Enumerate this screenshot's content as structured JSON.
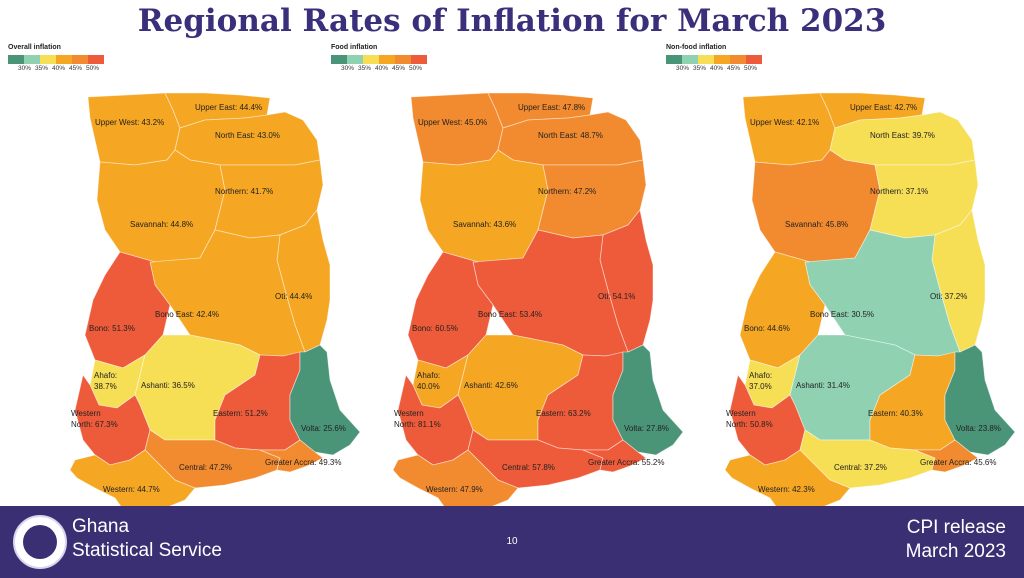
{
  "title": "Regional Rates of Inflation for March 2023",
  "colors": {
    "c30": "#4a9478",
    "c35": "#8fd1b0",
    "c40": "#f6de55",
    "c45": "#f5a623",
    "c50": "#f28b30",
    "c55": "#ee5b3a"
  },
  "legend_ticks": [
    "30%",
    "35%",
    "40%",
    "45%",
    "50%"
  ],
  "maps": [
    {
      "legend_title": "Overall inflation",
      "labels": {
        "upper_west": "Upper West: 43.2%",
        "upper_east": "Upper East: 44.4%",
        "north_east": "North East: 43.0%",
        "northern": "Northern: 41.7%",
        "savannah": "Savannah: 44.8%",
        "bono": "Bono: 51.3%",
        "bono_east": "Bono East: 42.4%",
        "oti": "Oti: 44.4%",
        "ahafo_1": "Ahafo:",
        "ahafo_2": "38.7%",
        "ashanti": "Ashanti: 36.5%",
        "western_north_1": "Western",
        "western_north_2": "North: 67.3%",
        "eastern": "Eastern: 51.2%",
        "volta": "Volta: 25.6%",
        "central": "Central: 47.2%",
        "greater_accra": "Greater Accra: 49.3%",
        "western": "Western: 44.7%"
      },
      "values": {
        "upper_west": 43.2,
        "upper_east": 44.4,
        "north_east": 43.0,
        "northern": 41.7,
        "savannah": 44.8,
        "bono": 51.3,
        "bono_east": 42.4,
        "oti": 44.4,
        "ahafo": 38.7,
        "ashanti": 36.5,
        "western_north": 67.3,
        "eastern": 51.2,
        "volta": 25.6,
        "central": 47.2,
        "greater_accra": 49.3,
        "western": 44.7
      }
    },
    {
      "legend_title": "Food inflation",
      "labels": {
        "upper_west": "Upper West: 45.0%",
        "upper_east": "Upper East: 47.8%",
        "north_east": "North East: 48.7%",
        "northern": "Northern: 47.2%",
        "savannah": "Savannah: 43.6%",
        "bono": "Bono: 60.5%",
        "bono_east": "Bono East: 53.4%",
        "oti": "Oti: 54.1%",
        "ahafo_1": "Ahafo:",
        "ahafo_2": "40.0%",
        "ashanti": "Ashanti: 42.6%",
        "western_north_1": "Western",
        "western_north_2": "North: 81.1%",
        "eastern": "Eastern: 63.2%",
        "volta": "Volta: 27.8%",
        "central": "Central: 57.8%",
        "greater_accra": "Greater Accra: 55.2%",
        "western": "Western: 47.9%"
      },
      "values": {
        "upper_west": 45.0,
        "upper_east": 47.8,
        "north_east": 48.7,
        "northern": 47.2,
        "savannah": 43.6,
        "bono": 60.5,
        "bono_east": 53.4,
        "oti": 54.1,
        "ahafo": 40.0,
        "ashanti": 42.6,
        "western_north": 81.1,
        "eastern": 63.2,
        "volta": 27.8,
        "central": 57.8,
        "greater_accra": 55.2,
        "western": 47.9
      }
    },
    {
      "legend_title": "Non-food inflation",
      "labels": {
        "upper_west": "Upper West: 42.1%",
        "upper_east": "Upper East: 42.7%",
        "north_east": "North East: 39.7%",
        "northern": "Northern: 37.1%",
        "savannah": "Savannah: 45.8%",
        "bono": "Bono: 44.6%",
        "bono_east": "Bono East: 30.5%",
        "oti": "Oti: 37.2%",
        "ahafo_1": "Ahafo:",
        "ahafo_2": "37.0%",
        "ashanti": "Ashanti: 31.4%",
        "western_north_1": "Western",
        "western_north_2": "North: 50.8%",
        "eastern": "Eastern: 40.3%",
        "volta": "Volta: 23.8%",
        "central": "Central: 37.2%",
        "greater_accra": "Greater Accra: 45.6%",
        "western": "Western: 42.3%"
      },
      "values": {
        "upper_west": 42.1,
        "upper_east": 42.7,
        "north_east": 39.7,
        "northern": 37.1,
        "savannah": 45.8,
        "bono": 44.6,
        "bono_east": 30.5,
        "oti": 37.2,
        "ahafo": 37.0,
        "ashanti": 31.4,
        "western_north": 50.8,
        "eastern": 40.3,
        "volta": 23.8,
        "central": 37.2,
        "greater_accra": 45.6,
        "western": 42.3
      }
    }
  ],
  "footer": {
    "org_line1": "Ghana",
    "org_line2": "Statistical Service",
    "page_number": "10",
    "release_line1": "CPI release",
    "release_line2": "March  2023"
  }
}
